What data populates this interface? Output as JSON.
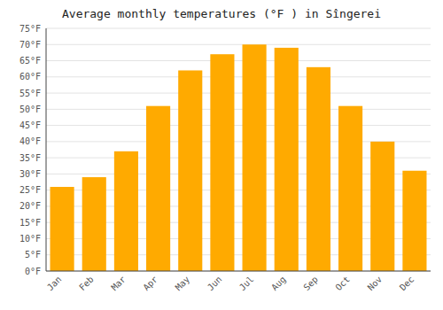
{
  "chart_data": {
    "type": "bar",
    "title": "Average monthly temperatures (°F ) in Sîngerei",
    "categories": [
      "Jan",
      "Feb",
      "Mar",
      "Apr",
      "May",
      "Jun",
      "Jul",
      "Aug",
      "Sep",
      "Oct",
      "Nov",
      "Dec"
    ],
    "values": [
      26,
      29,
      37,
      51,
      62,
      67,
      70,
      69,
      63,
      51,
      40,
      31
    ],
    "color": "#FFAA00",
    "ylim": [
      0,
      75
    ],
    "yticks": [
      {
        "value": 0,
        "label": "0°F"
      },
      {
        "value": 5,
        "label": "5°F"
      },
      {
        "value": 10,
        "label": "10°F"
      },
      {
        "value": 15,
        "label": "15°F"
      },
      {
        "value": 20,
        "label": "20°F"
      },
      {
        "value": 25,
        "label": "25°F"
      },
      {
        "value": 30,
        "label": "30°F"
      },
      {
        "value": 35,
        "label": "35°F"
      },
      {
        "value": 40,
        "label": "40°F"
      },
      {
        "value": 45,
        "label": "45°F"
      },
      {
        "value": 50,
        "label": "50°F"
      },
      {
        "value": 55,
        "label": "55°F"
      },
      {
        "value": 60,
        "label": "60°F"
      },
      {
        "value": 65,
        "label": "65°F"
      },
      {
        "value": 70,
        "label": "70°F"
      },
      {
        "value": 75,
        "label": "75°F"
      }
    ],
    "grid": true
  }
}
